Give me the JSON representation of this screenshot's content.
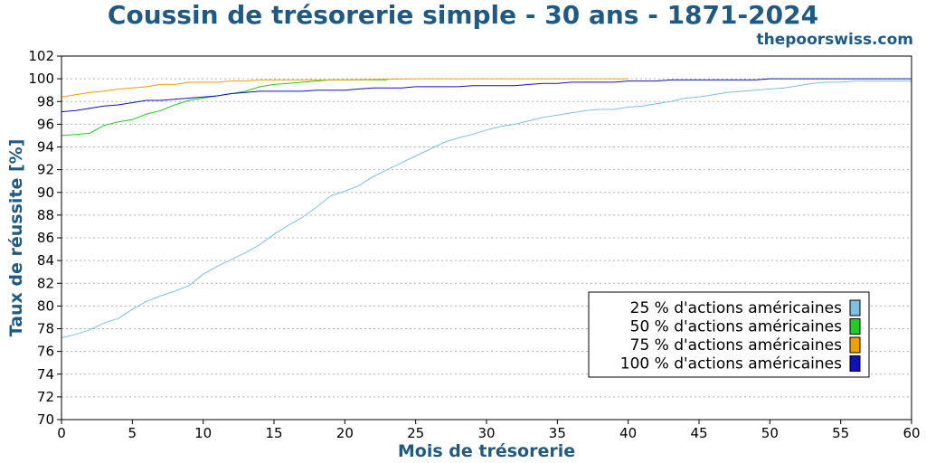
{
  "header": {
    "title": "Coussin de trésorerie simple - 30 ans - 1871-2024",
    "watermark": "thepoorswiss.com"
  },
  "chart_data": {
    "type": "line",
    "xlabel": "Mois de trésorerie",
    "ylabel": "Taux de réussite [%]",
    "xlim": [
      0,
      60
    ],
    "ylim": [
      70,
      102
    ],
    "xticks": [
      0,
      5,
      10,
      15,
      20,
      25,
      30,
      35,
      40,
      45,
      50,
      55,
      60
    ],
    "yticks": [
      70,
      72,
      74,
      76,
      78,
      80,
      82,
      84,
      86,
      88,
      90,
      92,
      94,
      96,
      98,
      100,
      102
    ],
    "grid": "horizontal dotted",
    "legend_position": "bottom-right",
    "series": [
      {
        "name": "25 % d'actions américaines",
        "color": "#7ec0e0",
        "x": [
          0,
          1,
          2,
          3,
          4,
          5,
          6,
          7,
          8,
          9,
          10,
          11,
          12,
          13,
          14,
          15,
          16,
          17,
          18,
          19,
          20,
          21,
          22,
          23,
          24,
          25,
          26,
          27,
          28,
          29,
          30,
          31,
          32,
          33,
          34,
          35,
          36,
          37,
          38,
          39,
          40,
          41,
          42,
          43,
          44,
          45,
          46,
          47,
          48,
          49,
          50,
          51,
          52,
          53,
          54,
          55,
          56,
          57,
          58,
          59,
          60
        ],
        "values": [
          77.2,
          77.5,
          77.9,
          78.5,
          78.9,
          79.7,
          80.4,
          80.9,
          81.3,
          81.8,
          82.8,
          83.5,
          84.1,
          84.7,
          85.4,
          86.3,
          87.1,
          87.8,
          88.7,
          89.7,
          90.1,
          90.6,
          91.4,
          92.0,
          92.6,
          93.2,
          93.8,
          94.4,
          94.8,
          95.1,
          95.5,
          95.8,
          96.0,
          96.3,
          96.6,
          96.8,
          97.0,
          97.2,
          97.3,
          97.3,
          97.5,
          97.6,
          97.8,
          98.0,
          98.3,
          98.4,
          98.6,
          98.8,
          98.9,
          99.0,
          99.1,
          99.2,
          99.4,
          99.6,
          99.7,
          99.7,
          99.8,
          99.8,
          99.8,
          99.8,
          99.8
        ]
      },
      {
        "name": "50 % d'actions américaines",
        "color": "#22cc22",
        "x": [
          0,
          1,
          2,
          3,
          4,
          5,
          6,
          7,
          8,
          9,
          10,
          11,
          12,
          13,
          14,
          15,
          16,
          17,
          18,
          19,
          20,
          21,
          22,
          23
        ],
        "values": [
          95.0,
          95.1,
          95.2,
          95.9,
          96.2,
          96.4,
          96.9,
          97.2,
          97.7,
          98.1,
          98.3,
          98.5,
          98.7,
          98.9,
          99.3,
          99.5,
          99.6,
          99.7,
          99.8,
          99.9,
          99.9,
          99.9,
          99.9,
          99.9
        ]
      },
      {
        "name": "75 % d'actions américaines",
        "color": "#f0a000",
        "x": [
          0,
          1,
          2,
          3,
          4,
          5,
          6,
          7,
          8,
          9,
          10,
          11,
          12,
          13,
          14,
          15,
          20,
          25,
          30,
          35,
          40
        ],
        "values": [
          98.4,
          98.6,
          98.8,
          98.9,
          99.1,
          99.2,
          99.3,
          99.5,
          99.5,
          99.7,
          99.7,
          99.7,
          99.8,
          99.8,
          99.9,
          99.9,
          99.9,
          100.0,
          100.0,
          100.0,
          100.0
        ]
      },
      {
        "name": "100 % d'actions américaines",
        "color": "#1010c0",
        "x": [
          0,
          1,
          2,
          3,
          4,
          5,
          6,
          7,
          8,
          9,
          10,
          11,
          12,
          13,
          14,
          15,
          16,
          17,
          18,
          19,
          20,
          21,
          22,
          23,
          24,
          25,
          26,
          27,
          28,
          29,
          30,
          31,
          32,
          33,
          34,
          35,
          36,
          37,
          38,
          39,
          40,
          41,
          42,
          43,
          44,
          45,
          46,
          47,
          48,
          49,
          50,
          51,
          52,
          53,
          54,
          55,
          56,
          57,
          58,
          59,
          60
        ],
        "values": [
          97.1,
          97.2,
          97.4,
          97.6,
          97.7,
          97.9,
          98.1,
          98.1,
          98.2,
          98.3,
          98.4,
          98.5,
          98.7,
          98.8,
          98.9,
          98.9,
          98.9,
          98.9,
          99.0,
          99.0,
          99.0,
          99.1,
          99.2,
          99.2,
          99.2,
          99.3,
          99.3,
          99.3,
          99.3,
          99.4,
          99.4,
          99.4,
          99.4,
          99.5,
          99.6,
          99.6,
          99.7,
          99.7,
          99.7,
          99.7,
          99.8,
          99.8,
          99.8,
          99.9,
          99.9,
          99.9,
          99.9,
          99.9,
          99.9,
          99.9,
          100.0,
          100.0,
          100.0,
          100.0,
          100.0,
          100.0,
          100.0,
          100.0,
          100.0,
          100.0,
          100.0
        ]
      }
    ]
  }
}
